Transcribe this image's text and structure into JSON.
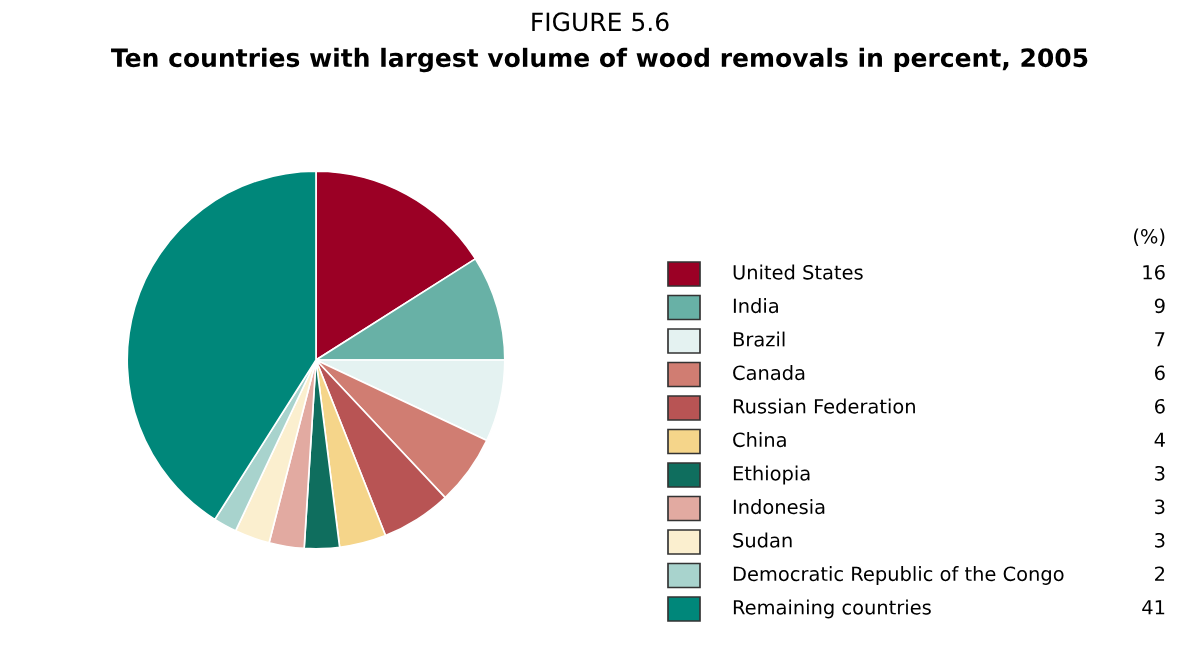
{
  "chart_data": {
    "type": "pie",
    "title": "FIGURE 5.6",
    "subtitle": "Ten countries with largest volume of wood removals in percent, 2005",
    "legend_title": "(%)",
    "legend": "right",
    "data_labels": true,
    "categories": [
      "United States",
      "India",
      "Brazil",
      "Canada",
      "Russian Federation",
      "China",
      "Ethiopia",
      "Indonesia",
      "Sudan",
      "Democratic Republic of the Congo",
      "Remaining countries"
    ],
    "values": [
      16,
      9,
      7,
      6,
      6,
      4,
      3,
      3,
      3,
      2,
      41
    ],
    "colors": [
      "#9b0025",
      "#68b1a6",
      "#e4f2f1",
      "#d07d72",
      "#b85454",
      "#f5d58a",
      "#0f6e5e",
      "#e2aaa1",
      "#fbefcf",
      "#a8d3cd",
      "#00877a"
    ]
  }
}
